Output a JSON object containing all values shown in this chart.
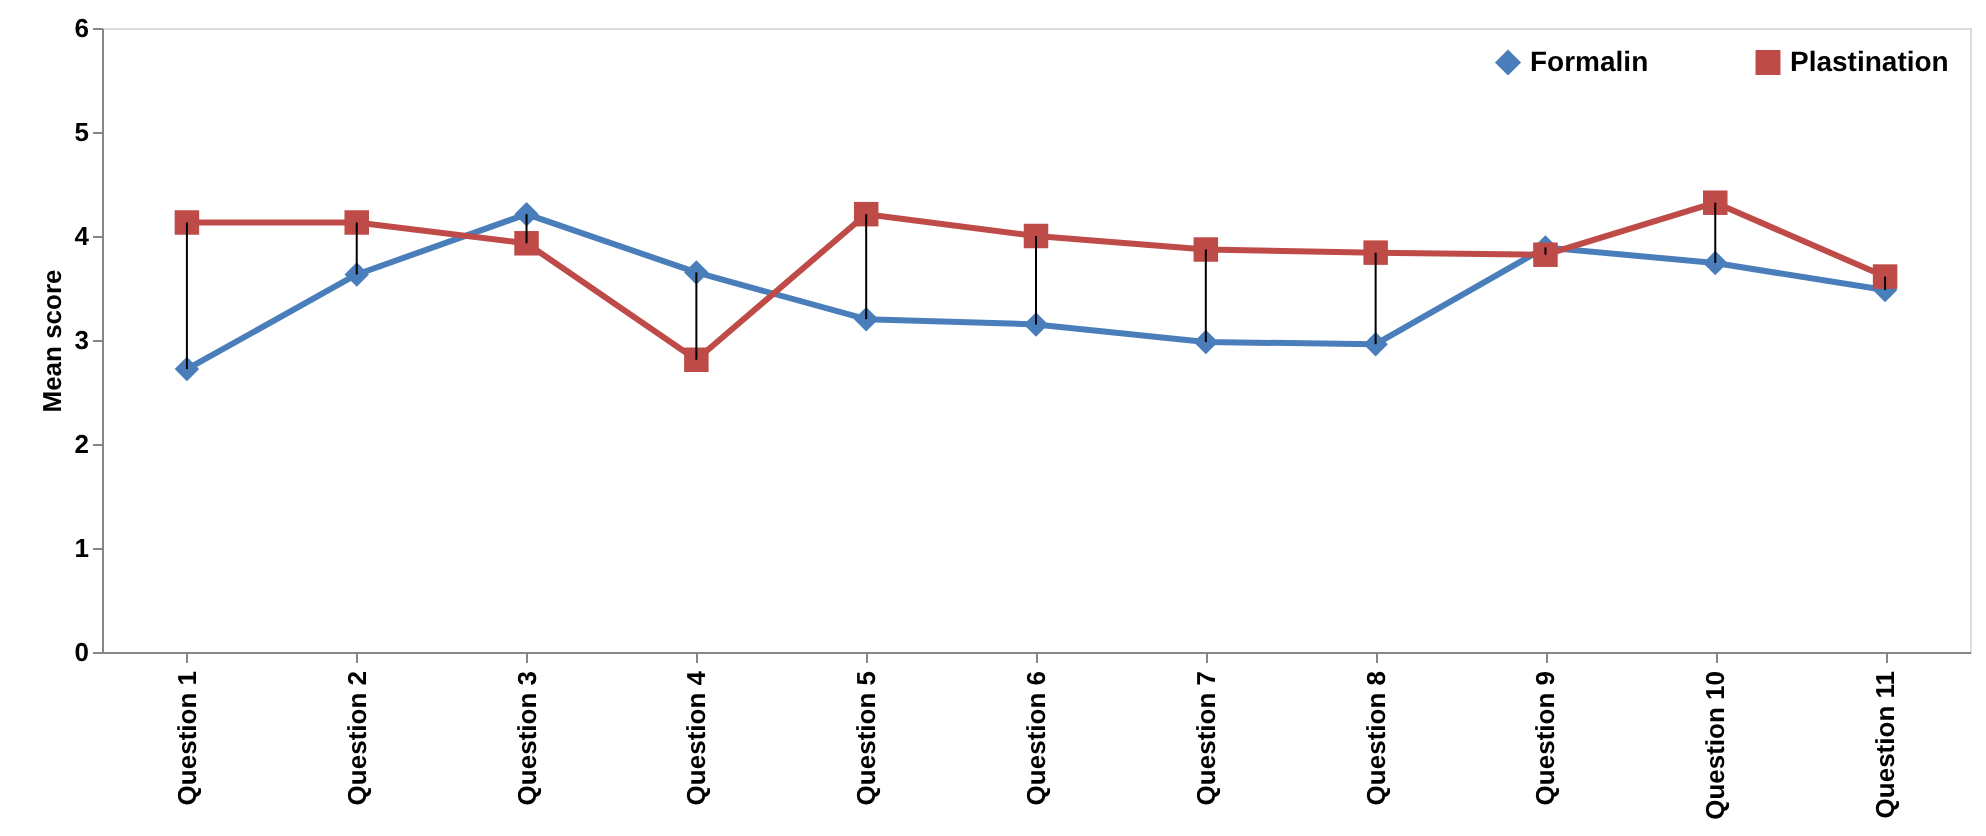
{
  "chart_data": {
    "type": "line",
    "ylabel": "Mean score",
    "categories": [
      "Question 1",
      "Question 2",
      "Question 3",
      "Question 4",
      "Question 5",
      "Question 6",
      "Question 7",
      "Question 8",
      "Question 9",
      "Question 10",
      "Question 11"
    ],
    "series": [
      {
        "name": "Formalin",
        "color": "#4a7ebb",
        "marker": "diamond",
        "values": [
          2.72,
          3.63,
          4.21,
          3.65,
          3.2,
          3.15,
          2.98,
          2.96,
          3.89,
          3.74,
          3.48
        ],
        "errors": [
          [
            2.72,
            4.13
          ],
          [
            3.63,
            4.13
          ],
          [
            3.93,
            4.21
          ],
          [
            2.81,
            3.65
          ],
          [
            3.2,
            4.21
          ],
          [
            3.15,
            4.0
          ],
          [
            2.98,
            3.87
          ],
          [
            2.96,
            3.84
          ],
          [
            3.82,
            3.89
          ],
          [
            3.74,
            4.32
          ],
          [
            3.48,
            3.61
          ]
        ]
      },
      {
        "name": "Plastination",
        "color": "#be4b48",
        "marker": "square",
        "values": [
          4.13,
          4.13,
          3.93,
          2.81,
          4.21,
          4.0,
          3.87,
          3.84,
          3.82,
          4.32,
          3.61
        ]
      }
    ],
    "ylim": [
      0,
      6
    ],
    "yticks": [
      0,
      1,
      2,
      3,
      4,
      5,
      6
    ],
    "grid": false,
    "legend": "top right"
  }
}
